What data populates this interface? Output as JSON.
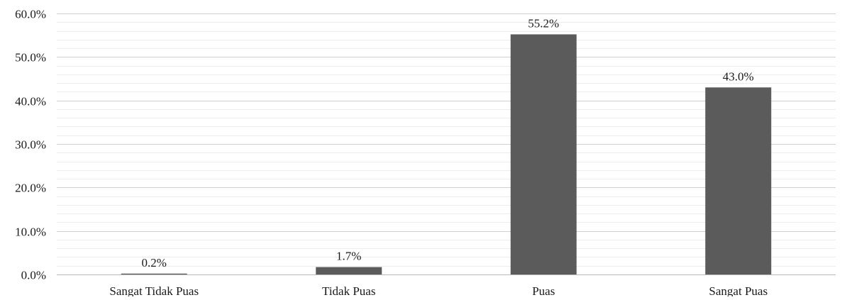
{
  "chart_data": {
    "type": "bar",
    "title": "",
    "xlabel": "",
    "ylabel": "",
    "categories": [
      "Sangat Tidak Puas",
      "Tidak Puas",
      "Puas",
      "Sangat Puas"
    ],
    "values": [
      0.2,
      1.7,
      55.2,
      43.0
    ],
    "data_labels": [
      "0.2%",
      "1.7%",
      "55.2%",
      "43.0%"
    ],
    "ylim": [
      0,
      60
    ],
    "y_ticks": [
      0,
      10,
      20,
      30,
      40,
      50,
      60
    ],
    "y_tick_labels": [
      "0.0%",
      "10.0%",
      "20.0%",
      "30.0%",
      "40.0%",
      "50.0%",
      "60.0%"
    ],
    "grid": true,
    "minor_grid": true,
    "legend": "none",
    "colors": {
      "bar": "#5b5b5b",
      "major_grid": "#d0d0d0",
      "minor_grid": "#ececec",
      "axis": "#b8b8b8"
    }
  }
}
